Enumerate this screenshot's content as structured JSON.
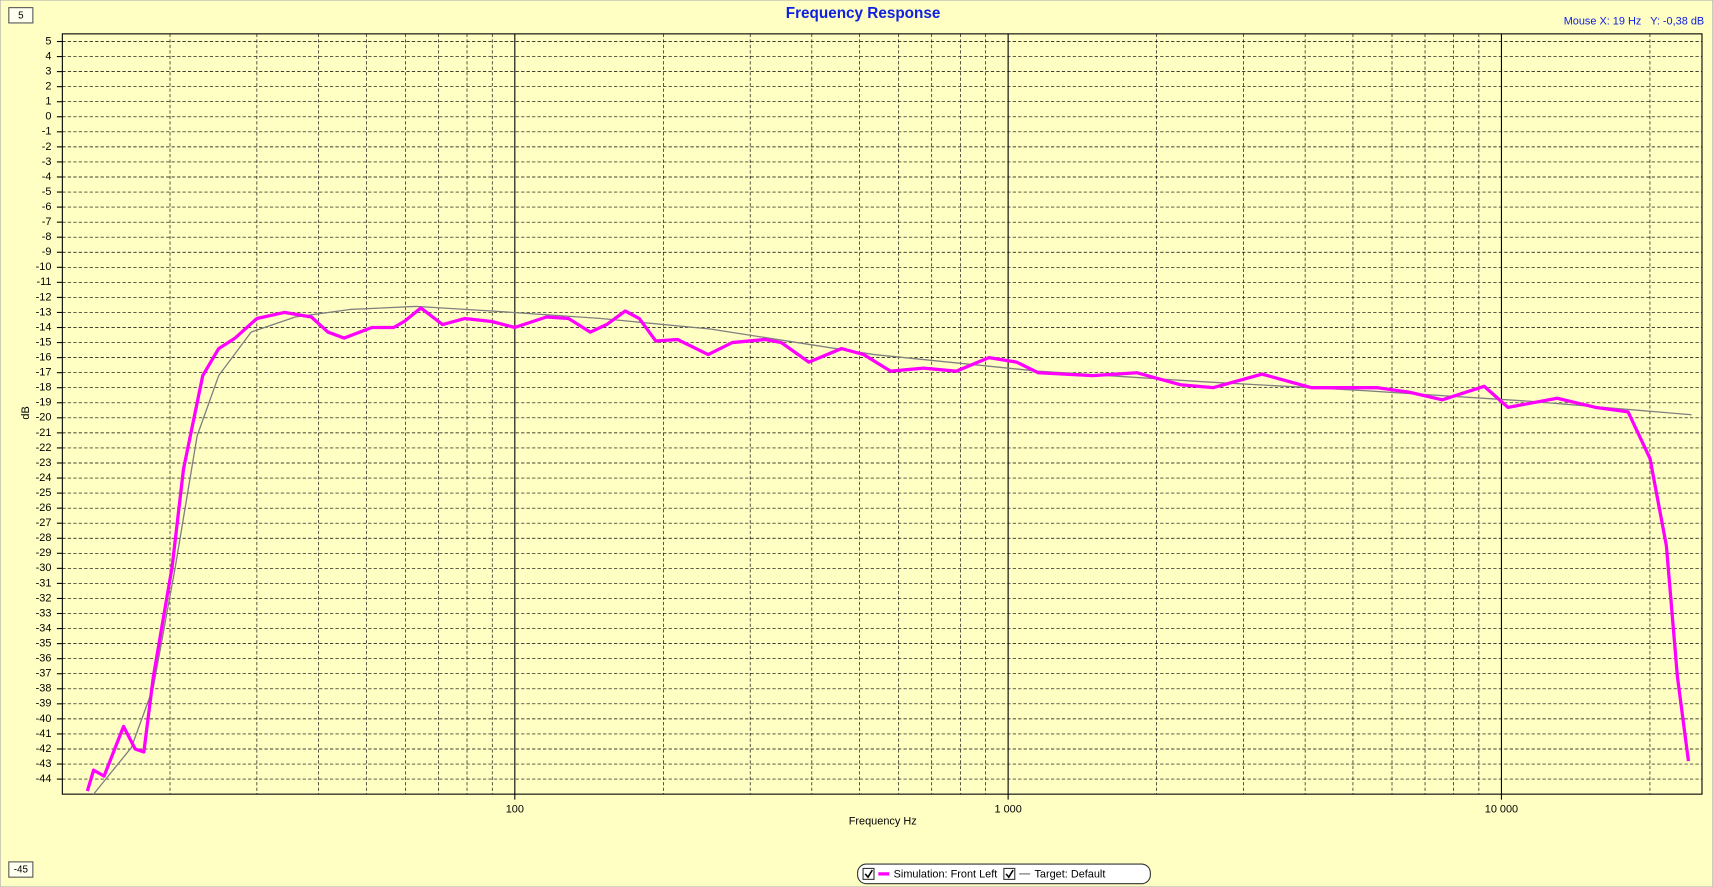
{
  "chart_data": {
    "type": "line",
    "title": "Frequency Response",
    "status": "Mouse X: 19 Hz   Y: -0,38 dB",
    "x_label": "Frequency Hz",
    "y_label": "dB",
    "log_x": true,
    "grid": true,
    "xlim": [
      12.1,
      25500
    ],
    "ylim": [
      -45,
      5
    ],
    "xticks": [
      100,
      {
        "value": 1000,
        "label": "1 000"
      },
      {
        "value": 10000,
        "label": "10 000"
      }
    ],
    "x_minor_grid": [
      20,
      30,
      40,
      50,
      60,
      70,
      80,
      90,
      200,
      300,
      400,
      500,
      600,
      700,
      800,
      900,
      2000,
      3000,
      4000,
      5000,
      6000,
      7000,
      8000,
      9000,
      20000
    ],
    "yticks": [
      5,
      4,
      3,
      2,
      1,
      0,
      -1,
      -2,
      -3,
      -4,
      -5,
      -6,
      -7,
      -8,
      -9,
      -10,
      -11,
      -12,
      -13,
      -14,
      -15,
      -16,
      -17,
      -18,
      -19,
      -20,
      -21,
      -22,
      -23,
      -24,
      -25,
      -26,
      -27,
      -28,
      -29,
      -30,
      -31,
      -32,
      -33,
      -34,
      -35,
      -36,
      -37,
      -38,
      -39,
      -40,
      -41,
      -42,
      -43,
      -44
    ],
    "series": [
      {
        "name": "Target: Default",
        "color": "#808080",
        "width": 1.2,
        "x": [
          14.0,
          16.7,
          18.5,
          20.5,
          22.7,
          25.1,
          29.2,
          35.9,
          46.3,
          62.9,
          89.8,
          149.6,
          249,
          535,
          1151,
          2473,
          5314,
          11420,
          24290
        ],
        "values": [
          -45,
          -41.9,
          -37.9,
          -29.9,
          -21.2,
          -17.2,
          -14.3,
          -13.3,
          -12.8,
          -12.6,
          -12.9,
          -13.4,
          -14.1,
          -15.8,
          -16.9,
          -17.6,
          -18.2,
          -18.9,
          -19.8
        ]
      },
      {
        "name": "Simulation: Front Left",
        "color": "#ff00ff",
        "width": 3,
        "x": [
          13.6,
          14.0,
          14.7,
          16.1,
          17.0,
          17.7,
          18.5,
          20.2,
          21.3,
          23.3,
          25.1,
          27.1,
          30.0,
          34.1,
          38.7,
          41.8,
          45.1,
          51.3,
          56.8,
          59.7,
          64.5,
          71.4,
          79.1,
          89.8,
          100,
          115.9,
          128.5,
          142.2,
          153.5,
          167.4,
          178.8,
          193.1,
          213.8,
          246.6,
          275.9,
          321.4,
          346.7,
          394.5,
          459.4,
          509.5,
          578.1,
          673.3,
          785,
          914,
          1040,
          1151,
          1484,
          1822,
          2233,
          2602,
          3272,
          4117,
          5588,
          6514,
          7590,
          9226,
          10310,
          12970,
          15500,
          18060,
          20000,
          21600,
          22740,
          23940
        ],
        "values": [
          -44.8,
          -43.4,
          -43.8,
          -40.5,
          -42,
          -42.2,
          -37.2,
          -29.9,
          -23.4,
          -17.2,
          -15.4,
          -14.7,
          -13.4,
          -13,
          -13.3,
          -14.3,
          -14.7,
          -14,
          -14,
          -13.6,
          -12.7,
          -13.8,
          -13.4,
          -13.6,
          -14,
          -13.3,
          -13.4,
          -14.3,
          -13.8,
          -12.9,
          -13.4,
          -14.9,
          -14.8,
          -15.8,
          -15,
          -14.8,
          -15,
          -16.3,
          -15.4,
          -15.8,
          -16.9,
          -16.7,
          -16.9,
          -16,
          -16.3,
          -17,
          -17.2,
          -17,
          -17.8,
          -18,
          -17.1,
          -18,
          -18,
          -18.3,
          -18.8,
          -17.9,
          -19.3,
          -18.7,
          -19.3,
          -19.6,
          -22.7,
          -28.5,
          -37.2,
          -42.8
        ]
      }
    ],
    "legend_order": [
      1,
      0
    ]
  }
}
